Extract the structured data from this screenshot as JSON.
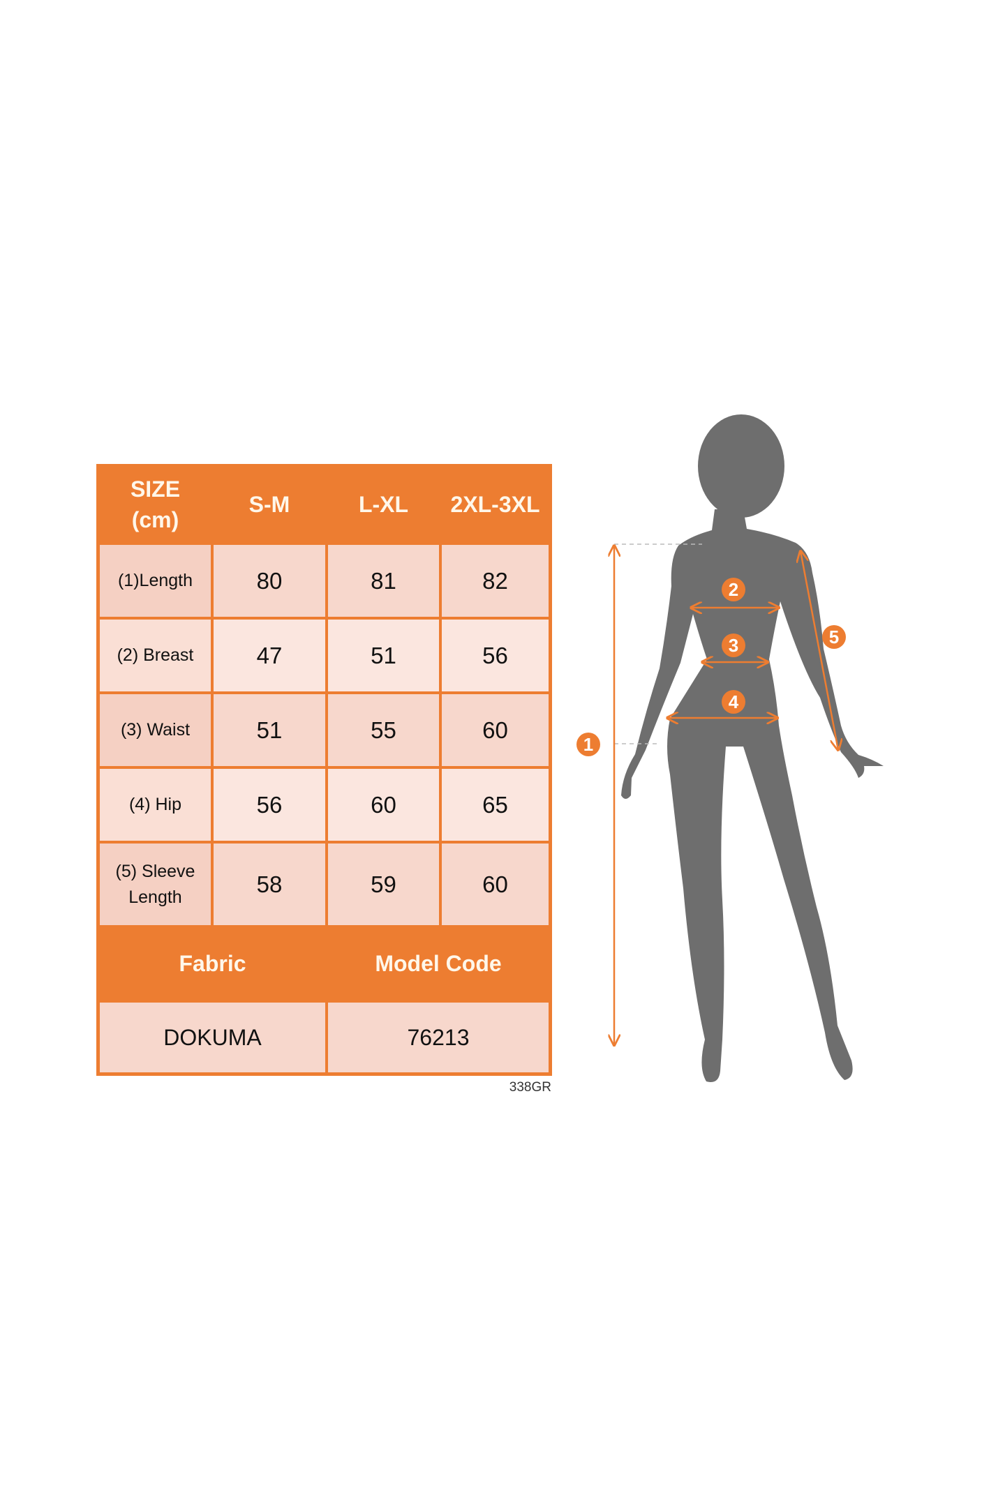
{
  "table": {
    "header": [
      "SIZE\n(cm)",
      "S-M",
      "L-XL",
      "2XL-3XL"
    ],
    "header_label_line1": "SIZE",
    "header_label_line2": "(cm)",
    "rows": [
      {
        "label": "(1)Length",
        "values": [
          "80",
          "81",
          "82"
        ]
      },
      {
        "label": "(2) Breast",
        "values": [
          "47",
          "51",
          "56"
        ]
      },
      {
        "label": "(3) Waist",
        "values": [
          "51",
          "55",
          "60"
        ]
      },
      {
        "label": "(4) Hip",
        "values": [
          "56",
          "60",
          "65"
        ]
      },
      {
        "label": "(5) Sleeve Length",
        "label_line1": "(5) Sleeve",
        "label_line2": "Length",
        "values": [
          "58",
          "59",
          "60"
        ]
      }
    ],
    "footer_headers": [
      "Fabric",
      "Model Code"
    ],
    "footer_values": [
      "DOKUMA",
      "76213"
    ]
  },
  "product_code": "338GR",
  "figure": {
    "markers": [
      "1",
      "2",
      "3",
      "4",
      "5"
    ]
  },
  "colors": {
    "accent": "#ED7D31",
    "cell_dark": "#F7D7CC",
    "cell_light": "#FBE6DF",
    "silhouette": "#6E6E6E"
  }
}
